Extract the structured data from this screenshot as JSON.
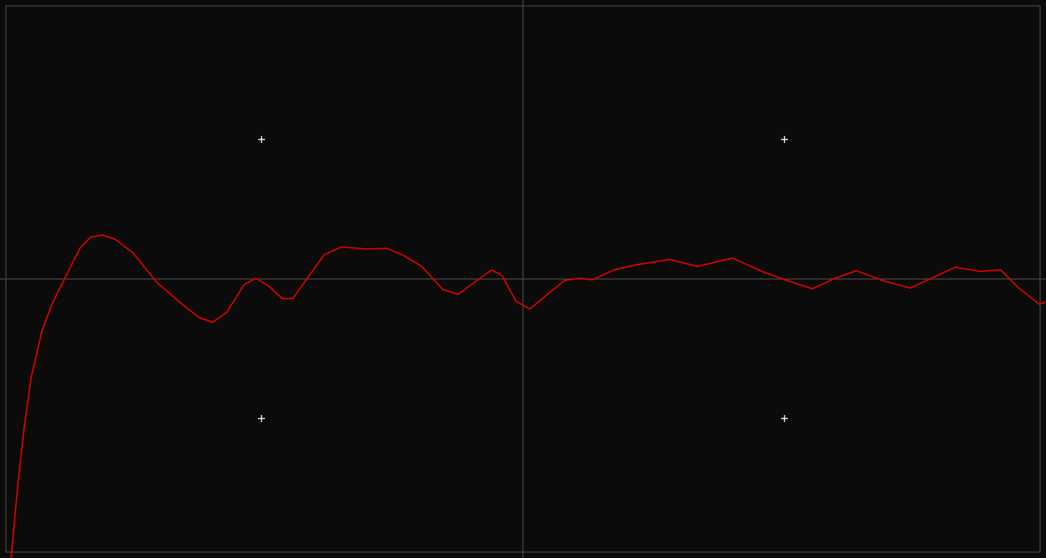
{
  "chart_data": {
    "type": "line",
    "xlim": [
      0,
      100
    ],
    "ylim": [
      -1,
      1
    ],
    "xticks": [
      50
    ],
    "yticks": [
      0
    ],
    "grid": true,
    "series": [
      {
        "color": "#e00000",
        "x": [
          1.07,
          1.67,
          2.33,
          3,
          4,
          5,
          6.33,
          7.67,
          8.67,
          9.8,
          11,
          12.67,
          15,
          17.33,
          19,
          20.33,
          21.67,
          23.33,
          24.47,
          25.67,
          27,
          28,
          29.33,
          31,
          32.67,
          35,
          37,
          38.67,
          40.33,
          42.33,
          43.8,
          45.33,
          47,
          48,
          49.33,
          50.67,
          52.33,
          54,
          55.33,
          56.67,
          58.67,
          60.67,
          64,
          66.67,
          70,
          73,
          75,
          77.67,
          79.67,
          81.87,
          84.33,
          87,
          89.33,
          91.33,
          93.67,
          95.67,
          97.33,
          99.33,
          100
        ],
        "values": [
          -1,
          -0.75,
          -0.525,
          -0.35,
          -0.1875,
          -0.0875,
          0.0125,
          0.1125,
          0.15,
          0.1575,
          0.1425,
          0.095,
          -0.0125,
          -0.0875,
          -0.1375,
          -0.155,
          -0.12,
          -0.02,
          0.0025,
          -0.025,
          -0.07,
          -0.07,
          0,
          0.0875,
          0.115,
          0.1075,
          0.11,
          0.0825,
          0.045,
          -0.0375,
          -0.055,
          -0.0125,
          0.0325,
          0.0125,
          -0.08,
          -0.1075,
          -0.055,
          -0.005,
          0.0025,
          -0.0025,
          0.0325,
          0.05,
          0.07,
          0.045,
          0.075,
          0.025,
          -0.0025,
          -0.035,
          0,
          0.03,
          -0.005,
          -0.0325,
          0.0075,
          0.0425,
          0.0275,
          0.0325,
          -0.03,
          -0.09,
          -0.0825
        ]
      }
    ]
  }
}
